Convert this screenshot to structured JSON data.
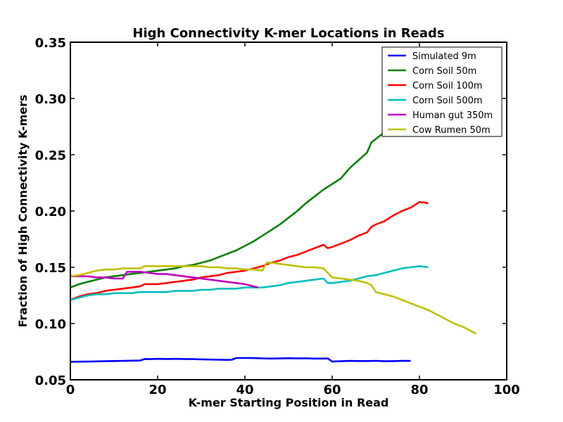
{
  "chart_data": {
    "type": "line",
    "title": "High Connectivity K-mer Locations in Reads",
    "xlabel": "K-mer Starting Position in Read",
    "ylabel": "Fraction of High Connectivity K-mers",
    "xlim": [
      0,
      100
    ],
    "ylim": [
      0.05,
      0.35
    ],
    "xticks": [
      0,
      20,
      40,
      60,
      80,
      100
    ],
    "xtick_labels": [
      "0",
      "20",
      "40",
      "60",
      "80",
      "100"
    ],
    "yticks": [
      0.05,
      0.1,
      0.15,
      0.2,
      0.25,
      0.3,
      0.35
    ],
    "ytick_labels": [
      "0.05",
      "0.10",
      "0.15",
      "0.20",
      "0.25",
      "0.30",
      "0.35"
    ],
    "grid": false,
    "legend_position": "top-right",
    "series": [
      {
        "name": "Simulated 9m",
        "color": "#0000ff",
        "x": [
          0,
          2,
          4,
          6,
          8,
          10,
          12,
          14,
          16,
          17,
          18,
          20,
          22,
          24,
          26,
          28,
          30,
          32,
          34,
          36,
          37,
          38,
          40,
          42,
          44,
          46,
          48,
          50,
          52,
          54,
          56,
          58,
          59,
          60,
          62,
          64,
          66,
          68,
          70,
          72,
          74,
          76,
          78
        ],
        "y": [
          0.066,
          0.0661,
          0.0662,
          0.0664,
          0.0665,
          0.0667,
          0.0668,
          0.067,
          0.0671,
          0.0685,
          0.0684,
          0.0686,
          0.0685,
          0.0686,
          0.0685,
          0.0684,
          0.0682,
          0.068,
          0.0678,
          0.0677,
          0.0678,
          0.0694,
          0.0694,
          0.0693,
          0.069,
          0.0689,
          0.069,
          0.0692,
          0.069,
          0.0691,
          0.0689,
          0.0689,
          0.069,
          0.0662,
          0.0665,
          0.0668,
          0.0667,
          0.0667,
          0.0669,
          0.0665,
          0.0666,
          0.0668,
          0.0668
        ]
      },
      {
        "name": "Corn Soil 50m",
        "color": "#008000",
        "x": [
          0,
          2,
          4,
          6,
          8,
          10,
          12,
          14,
          16,
          18,
          20,
          22,
          24,
          26,
          28,
          30,
          32,
          34,
          36,
          38,
          40,
          42,
          44,
          46,
          48,
          50,
          52,
          54,
          56,
          58,
          60,
          62,
          64,
          66,
          68,
          69,
          70,
          71,
          72
        ],
        "y": [
          0.132,
          0.135,
          0.137,
          0.139,
          0.141,
          0.142,
          0.143,
          0.144,
          0.145,
          0.146,
          0.147,
          0.148,
          0.149,
          0.151,
          0.152,
          0.154,
          0.156,
          0.159,
          0.162,
          0.165,
          0.169,
          0.173,
          0.178,
          0.183,
          0.188,
          0.194,
          0.2,
          0.207,
          0.213,
          0.219,
          0.224,
          0.229,
          0.238,
          0.245,
          0.252,
          0.261,
          0.264,
          0.267,
          0.27
        ]
      },
      {
        "name": "Corn Soil 100m",
        "color": "#ff0000",
        "x": [
          0,
          2,
          4,
          6,
          8,
          10,
          12,
          14,
          16,
          17,
          18,
          20,
          22,
          24,
          26,
          28,
          30,
          32,
          34,
          36,
          38,
          40,
          42,
          44,
          46,
          48,
          50,
          52,
          54,
          56,
          58,
          59,
          60,
          62,
          64,
          66,
          68,
          69,
          70,
          72,
          74,
          76,
          78,
          80,
          82
        ],
        "y": [
          0.121,
          0.124,
          0.126,
          0.127,
          0.129,
          0.13,
          0.131,
          0.132,
          0.133,
          0.135,
          0.135,
          0.135,
          0.136,
          0.137,
          0.138,
          0.139,
          0.141,
          0.142,
          0.143,
          0.145,
          0.146,
          0.147,
          0.149,
          0.151,
          0.154,
          0.156,
          0.159,
          0.161,
          0.164,
          0.167,
          0.17,
          0.167,
          0.168,
          0.171,
          0.174,
          0.178,
          0.181,
          0.186,
          0.188,
          0.191,
          0.196,
          0.2,
          0.203,
          0.208,
          0.207
        ]
      },
      {
        "name": "Corn Soil 500m",
        "color": "#00bfbf",
        "x": [
          0,
          2,
          4,
          6,
          8,
          10,
          12,
          14,
          16,
          18,
          20,
          22,
          24,
          26,
          28,
          30,
          32,
          34,
          36,
          38,
          40,
          42,
          44,
          46,
          48,
          50,
          52,
          54,
          56,
          58,
          59,
          60,
          62,
          64,
          66,
          68,
          70,
          72,
          74,
          76,
          78,
          80,
          82
        ],
        "y": [
          0.121,
          0.123,
          0.125,
          0.126,
          0.126,
          0.127,
          0.127,
          0.127,
          0.128,
          0.128,
          0.128,
          0.128,
          0.129,
          0.129,
          0.129,
          0.13,
          0.13,
          0.131,
          0.131,
          0.131,
          0.132,
          0.132,
          0.132,
          0.133,
          0.134,
          0.136,
          0.137,
          0.138,
          0.139,
          0.14,
          0.136,
          0.136,
          0.137,
          0.138,
          0.14,
          0.142,
          0.143,
          0.145,
          0.147,
          0.149,
          0.15,
          0.151,
          0.15
        ]
      },
      {
        "name": "Human gut 350m",
        "color": "#bf00bf",
        "x": [
          0,
          2,
          4,
          6,
          8,
          10,
          12,
          13,
          14,
          16,
          18,
          20,
          22,
          24,
          26,
          28,
          30,
          32,
          34,
          36,
          38,
          40,
          42,
          43
        ],
        "y": [
          0.142,
          0.142,
          0.142,
          0.141,
          0.141,
          0.14,
          0.14,
          0.146,
          0.146,
          0.146,
          0.145,
          0.144,
          0.144,
          0.143,
          0.142,
          0.141,
          0.14,
          0.139,
          0.138,
          0.137,
          0.136,
          0.135,
          0.133,
          0.132
        ]
      },
      {
        "name": "Cow Rumen 50m",
        "color": "#bfbf00",
        "x": [
          0,
          2,
          4,
          6,
          8,
          10,
          12,
          14,
          16,
          17,
          18,
          20,
          22,
          24,
          26,
          28,
          30,
          32,
          34,
          36,
          38,
          40,
          42,
          44,
          45,
          46,
          48,
          50,
          52,
          54,
          56,
          58,
          59,
          60,
          62,
          64,
          66,
          68,
          69,
          70,
          72,
          74,
          76,
          78,
          80,
          82,
          84,
          86,
          88,
          90,
          92,
          93
        ],
        "y": [
          0.142,
          0.143,
          0.145,
          0.147,
          0.148,
          0.148,
          0.149,
          0.149,
          0.149,
          0.151,
          0.151,
          0.151,
          0.151,
          0.151,
          0.151,
          0.151,
          0.151,
          0.15,
          0.15,
          0.149,
          0.149,
          0.148,
          0.148,
          0.147,
          0.154,
          0.154,
          0.153,
          0.152,
          0.151,
          0.15,
          0.15,
          0.149,
          0.145,
          0.141,
          0.14,
          0.139,
          0.138,
          0.136,
          0.134,
          0.128,
          0.126,
          0.124,
          0.121,
          0.118,
          0.115,
          0.112,
          0.108,
          0.104,
          0.1,
          0.097,
          0.093,
          0.091
        ]
      }
    ]
  }
}
